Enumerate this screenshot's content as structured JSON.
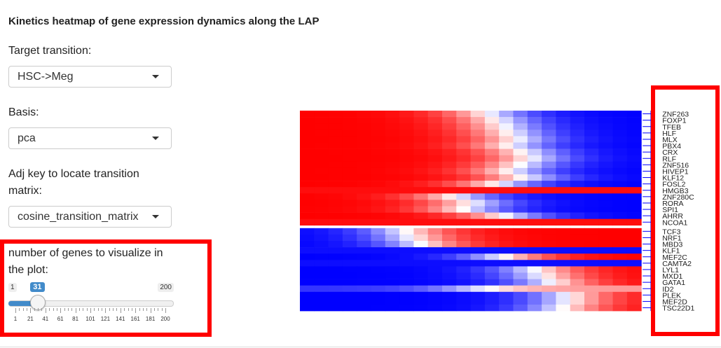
{
  "title": "Kinetics heatmap of gene expression dynamics along the LAP",
  "target_transition": {
    "label": "Target transition:",
    "value": "HSC->Meg"
  },
  "basis": {
    "label": "Basis:",
    "value": "pca"
  },
  "adj_key": {
    "label_line1": "Adj key to locate transition",
    "label_line2": "matrix:",
    "value": "cosine_transition_matrix"
  },
  "num_genes": {
    "label_line1": "number of genes to visualize in",
    "label_line2": "the plot:",
    "min_label": "1",
    "max_label": "200",
    "value_label": "31",
    "value": 31,
    "min": 1,
    "max": 200,
    "tick_labels": [
      "1",
      "21",
      "41",
      "61",
      "81",
      "101",
      "121",
      "141",
      "161",
      "181",
      "200"
    ]
  },
  "colors": {
    "heat_high": "#ff0000",
    "heat_low": "#0000ff",
    "annotation_red": "#ff0000",
    "slider_blue": "#428bca"
  },
  "chart_data": {
    "type": "heatmap",
    "n_columns": 24,
    "genes": [
      "ZNF263",
      "FOXP1",
      "TFEB",
      "HLF",
      "MLX",
      "PBX4",
      "CRX",
      "RLF",
      "ZNF516",
      "HIVEP1",
      "KLF12",
      "FOSL2",
      "HMGB3",
      "ZNF280C",
      "RORA",
      "SPI1",
      "AHRR",
      "NCOA1",
      "TCF3",
      "NRF1",
      "MBD3",
      "KLF1",
      "MEF2C",
      "CAMTA2",
      "LYL1",
      "MXD1",
      "GATA1",
      "ID2",
      "PLEK",
      "MEF2D",
      "TSC22D1"
    ],
    "groups": [
      {
        "name": "down",
        "genes_count": 18
      },
      {
        "name": "up",
        "genes_count": 13
      }
    ],
    "row_patterns": [
      "down",
      "down",
      "down",
      "down",
      "down",
      "down",
      "down",
      "down",
      "down",
      "down",
      "down",
      "down",
      "flat-red",
      "down",
      "down",
      "down",
      "down",
      "flat-red",
      "up",
      "up",
      "up",
      "flat-blue",
      "up",
      "flat-blue",
      "up",
      "up",
      "up",
      "up-weak",
      "up",
      "up",
      "up"
    ],
    "row_midpoints": [
      0.55,
      0.58,
      0.6,
      0.62,
      0.64,
      0.62,
      0.66,
      0.68,
      0.65,
      0.62,
      0.66,
      0.58,
      0.5,
      0.45,
      0.5,
      0.48,
      0.6,
      0.5,
      0.3,
      0.32,
      0.35,
      0.5,
      0.6,
      0.5,
      0.7,
      0.72,
      0.75,
      0.5,
      0.8,
      0.8,
      0.78
    ],
    "scale": "red = high, blue = low"
  }
}
